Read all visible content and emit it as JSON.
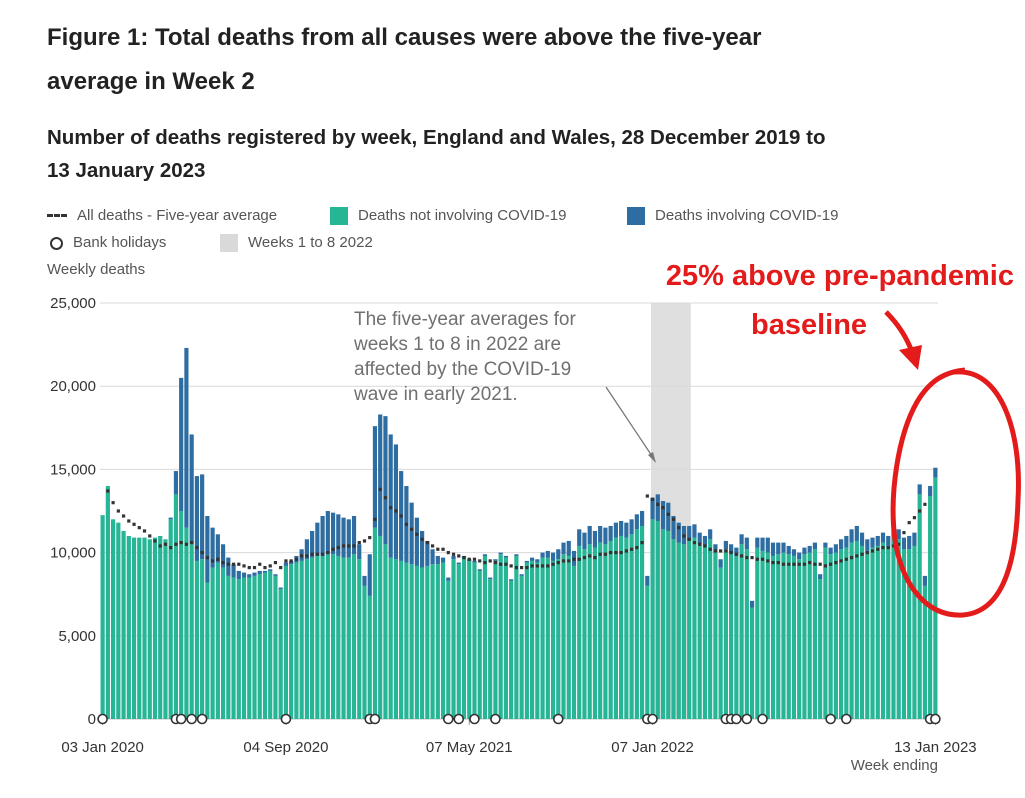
{
  "title": "Figure 1: Total deaths from all causes were above the five-year average in Week 2",
  "subtitle": "Number of deaths registered by week, England and Wales, 28 December 2019 to 13 January 2023",
  "legend": {
    "avg": "All deaths - Five-year average",
    "noncovid": "Deaths not involving COVID-19",
    "covid": "Deaths involving COVID-19",
    "bank": "Bank holidays",
    "weeks": "Weeks 1 to 8 2022"
  },
  "colors": {
    "noncovid": "#26b595",
    "covid": "#2e6da1",
    "avg": "#333333",
    "highlight": "#d9d9d9",
    "red": "#e31b1b",
    "grid": "#d9d9d9"
  },
  "note": {
    "line1": "The five-year averages for",
    "line2": "weeks 1 to 8 in 2022 are",
    "line3": "affected by the COVID-19",
    "line4": "wave in early 2021."
  },
  "overlay": {
    "line1": "25% above pre-pandemic",
    "line2": "baseline"
  },
  "chart_data": {
    "type": "bar",
    "title": "Number of deaths registered by week, England and Wales, 28 December 2019 to 13 January 2023",
    "ylabel": "Weekly deaths",
    "xlabel": "Week ending",
    "ylim": [
      0,
      25000
    ],
    "yticks": [
      "0",
      "5,000",
      "10,000",
      "15,000",
      "20,000",
      "25,000"
    ],
    "xtick_labels": [
      "03 Jan 2020",
      "04 Sep 2020",
      "07 May 2021",
      "07 Jan 2022",
      "13 Jan 2023"
    ],
    "xtick_week_index": [
      0,
      35,
      70,
      105,
      159
    ],
    "highlight_weeks": [
      105,
      112
    ],
    "series": [
      {
        "name": "Deaths not involving COVID-19",
        "values": [
          12250,
          14000,
          12000,
          11800,
          11300,
          11000,
          10900,
          10900,
          10900,
          10800,
          10900,
          11000,
          10800,
          12000,
          13500,
          12500,
          11500,
          10500,
          9500,
          9600,
          8200,
          9100,
          9400,
          9100,
          8600,
          8500,
          8400,
          8500,
          8500,
          8600,
          8700,
          8800,
          8900,
          8600,
          7800,
          9200,
          9300,
          9400,
          9500,
          9600,
          9700,
          9800,
          9800,
          9900,
          9900,
          9800,
          9700,
          9700,
          9900,
          9600,
          8000,
          7400,
          11500,
          11000,
          10500,
          9700,
          9600,
          9500,
          9400,
          9300,
          9200,
          9100,
          9200,
          9300,
          9300,
          9400,
          8300,
          9600,
          9300,
          9700,
          9500,
          9400,
          8900,
          9800,
          8400,
          9500,
          9900,
          9700,
          8300,
          9800,
          8600,
          9400,
          9500,
          9400,
          9700,
          9700,
          9500,
          9600,
          9900,
          9800,
          9200,
          10400,
          10200,
          10500,
          10300,
          10600,
          10500,
          10700,
          10900,
          11000,
          10900,
          11100,
          11400,
          11600,
          8000,
          12000,
          11900,
          11400,
          11300,
          10800,
          10600,
          10500,
          10700,
          10900,
          10500,
          10400,
          10800,
          10000,
          9100,
          10200,
          10000,
          9800,
          10500,
          10200,
          6700,
          10300,
          10100,
          10000,
          9800,
          9900,
          10000,
          9900,
          9800,
          9600,
          9900,
          10000,
          10200,
          8400,
          10300,
          9900,
          10000,
          10200,
          10300,
          10600,
          10700,
          10400,
          10100,
          10300,
          10400,
          10600,
          10400,
          11000,
          10800,
          10200,
          10200,
          10400,
          13500,
          8000,
          13400,
          14500
        ]
      },
      {
        "name": "Deaths involving COVID-19",
        "values": [
          0,
          0,
          0,
          0,
          0,
          0,
          0,
          0,
          0,
          0,
          0,
          0,
          0,
          100,
          1400,
          8000,
          10800,
          6600,
          5100,
          5100,
          4000,
          2400,
          1700,
          1400,
          1100,
          800,
          500,
          300,
          200,
          200,
          200,
          100,
          100,
          100,
          100,
          200,
          200,
          400,
          700,
          1200,
          1600,
          2000,
          2400,
          2600,
          2500,
          2500,
          2400,
          2300,
          2300,
          900,
          600,
          2500,
          6100,
          7300,
          7700,
          7400,
          6900,
          5400,
          4600,
          3700,
          2900,
          2200,
          1500,
          900,
          500,
          300,
          200,
          200,
          100,
          100,
          100,
          100,
          100,
          100,
          100,
          100,
          100,
          100,
          100,
          100,
          100,
          100,
          200,
          200,
          300,
          400,
          500,
          600,
          700,
          900,
          900,
          1000,
          1000,
          1100,
          1000,
          1000,
          1000,
          900,
          900,
          900,
          900,
          900,
          900,
          900,
          600,
          1300,
          1600,
          1700,
          1700,
          1400,
          1200,
          1100,
          900,
          800,
          700,
          600,
          600,
          500,
          500,
          500,
          500,
          500,
          600,
          700,
          400,
          600,
          800,
          900,
          800,
          700,
          600,
          500,
          400,
          400,
          400,
          400,
          400,
          300,
          300,
          400,
          500,
          600,
          700,
          800,
          900,
          800,
          700,
          600,
          600,
          600,
          600,
          700,
          600,
          700,
          800,
          800,
          600,
          600,
          600,
          600
        ]
      },
      {
        "name": "All deaths - Five-year average",
        "values": [
          null,
          13700,
          13000,
          12500,
          12200,
          11900,
          11700,
          11500,
          11300,
          11000,
          10700,
          10400,
          10500,
          10300,
          10500,
          10600,
          10500,
          10600,
          10300,
          10000,
          9700,
          9500,
          9600,
          9400,
          9300,
          9300,
          9300,
          9200,
          9100,
          9100,
          9300,
          9100,
          9200,
          9400,
          9100,
          9500,
          9500,
          9600,
          9800,
          9800,
          9900,
          9900,
          9900,
          10000,
          10200,
          10300,
          10400,
          10400,
          10400,
          10600,
          10700,
          10900,
          12000,
          13800,
          13300,
          12700,
          12500,
          12200,
          11700,
          11400,
          11100,
          10800,
          10600,
          10400,
          10200,
          10200,
          10000,
          9900,
          9800,
          9700,
          9600,
          9600,
          9500,
          9400,
          9500,
          9400,
          9300,
          9300,
          9200,
          9100,
          9100,
          9100,
          9200,
          9200,
          9200,
          9200,
          9300,
          9400,
          9500,
          9500,
          9600,
          9600,
          9700,
          9800,
          9700,
          9900,
          9900,
          10000,
          10000,
          10000,
          10100,
          10200,
          10300,
          10600,
          13400,
          13200,
          12900,
          12700,
          12300,
          12000,
          11500,
          11000,
          10800,
          10600,
          10500,
          10400,
          10200,
          10100,
          10100,
          10100,
          10000,
          9900,
          9800,
          9700,
          9700,
          9600,
          9600,
          9500,
          9400,
          9400,
          9300,
          9300,
          9300,
          9300,
          9300,
          9400,
          9300,
          9300,
          9200,
          9300,
          9400,
          9500,
          9600,
          9700,
          9800,
          9900,
          10000,
          10100,
          10200,
          10300,
          10300,
          10400,
          10500,
          11200,
          11800,
          12100,
          12500,
          12900
        ]
      }
    ],
    "bank_holiday_weeks": [
      0,
      14,
      15,
      17,
      19,
      35,
      51,
      52,
      66,
      68,
      71,
      75,
      87,
      104,
      105,
      119,
      120,
      121,
      123,
      126,
      139,
      142,
      158,
      159
    ],
    "annotation": "The five-year averages for weeks 1 to 8 in 2022 are affected by the COVID-19 wave in early 2021."
  }
}
